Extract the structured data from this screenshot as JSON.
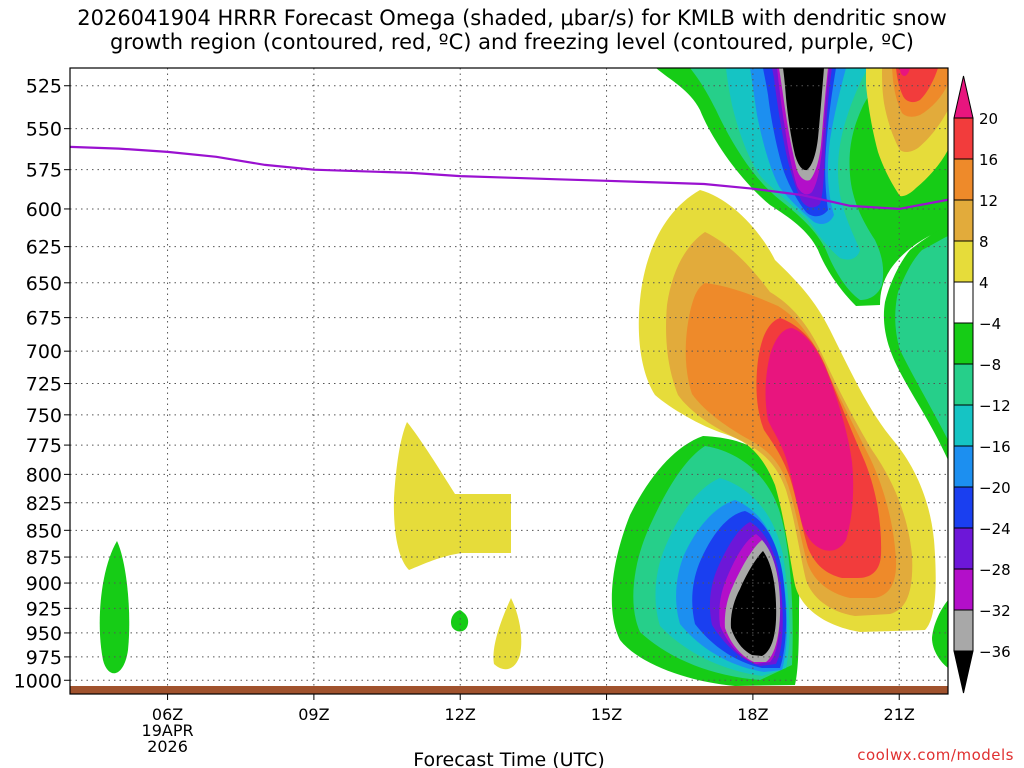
{
  "chart_data": {
    "type": "heatmap",
    "title_line1": "2026041904 HRRR Forecast Omega (shaded, μbar/s) for KMLB with dendritic snow",
    "title_line2": "growth region (contoured, red, ºC) and freezing level (contoured, purple, ºC)",
    "xlabel": "Forecast Time (UTC)",
    "x_ticks": [
      {
        "hour": 6,
        "label": "06Z",
        "sub1": "19APR",
        "sub2": "2026"
      },
      {
        "hour": 9,
        "label": "09Z"
      },
      {
        "hour": 12,
        "label": "12Z"
      },
      {
        "hour": 15,
        "label": "15Z"
      },
      {
        "hour": 18,
        "label": "18Z"
      },
      {
        "hour": 21,
        "label": "21Z"
      }
    ],
    "xlim_hours": [
      4.0,
      22.0
    ],
    "y_ticks": [
      525,
      550,
      575,
      600,
      625,
      650,
      675,
      700,
      725,
      750,
      775,
      800,
      825,
      850,
      875,
      900,
      925,
      950,
      975,
      1000
    ],
    "ylim_mb": [
      1015,
      515
    ],
    "colorbar": {
      "levels": [
        20,
        16,
        12,
        8,
        4,
        -4,
        -8,
        -12,
        -16,
        -20,
        -24,
        -28,
        -32,
        -36
      ],
      "labels": [
        "20",
        "16",
        "12",
        "8",
        "4",
        "−4",
        "−8",
        "−12",
        "−16",
        "−20",
        "−24",
        "−28",
        "−32",
        "−36"
      ],
      "colors": {
        "gt20": "#e8157e",
        "16_20": "#f23c3c",
        "12_16": "#ee8a2a",
        "8_12": "#e2ab3b",
        "4_8": "#e6dc3a",
        "m4_4": "#ffffff",
        "m8_m4": "#16cc16",
        "m12_m8": "#26cf8a",
        "m16_m12": "#15c4c4",
        "m20_m16": "#1c8ff0",
        "m24_m20": "#1a3ff0",
        "m28_m24": "#6d17d8",
        "m32_m28": "#b30fc9",
        "m36_m32": "#a8a8a8",
        "lt_m36": "#000000"
      }
    },
    "freezing_level": {
      "color": "#9a11d0",
      "points": [
        [
          4.0,
          561
        ],
        [
          5.0,
          562
        ],
        [
          6.0,
          564
        ],
        [
          7.0,
          567
        ],
        [
          8.0,
          572
        ],
        [
          9.0,
          575
        ],
        [
          10.0,
          576
        ],
        [
          11.0,
          577
        ],
        [
          12.0,
          579
        ],
        [
          13.0,
          580
        ],
        [
          14.0,
          581
        ],
        [
          15.0,
          582
        ],
        [
          16.0,
          583
        ],
        [
          17.0,
          584
        ],
        [
          18.0,
          587
        ],
        [
          19.0,
          591
        ],
        [
          20.0,
          598
        ],
        [
          20.5,
          599
        ],
        [
          21.0,
          600
        ],
        [
          22.0,
          594
        ]
      ]
    },
    "ground_color": "#a0522d",
    "omega_features": [
      {
        "name": "ascent-core-low-levels",
        "min_value": -36,
        "center_hour": 18.0,
        "center_mb": 935
      },
      {
        "name": "ascent-core-upper-levels",
        "min_value": -36,
        "center_hour": 19.0,
        "center_mb": 540
      },
      {
        "name": "descent-core-mid-levels",
        "max_value": 20,
        "center_hour": 19.4,
        "center_mb": 765
      },
      {
        "name": "descent-core-upper-right",
        "max_value": 16,
        "center_hour": 21.0,
        "center_mb": 535
      }
    ]
  },
  "credit": "coolwx.com/models"
}
